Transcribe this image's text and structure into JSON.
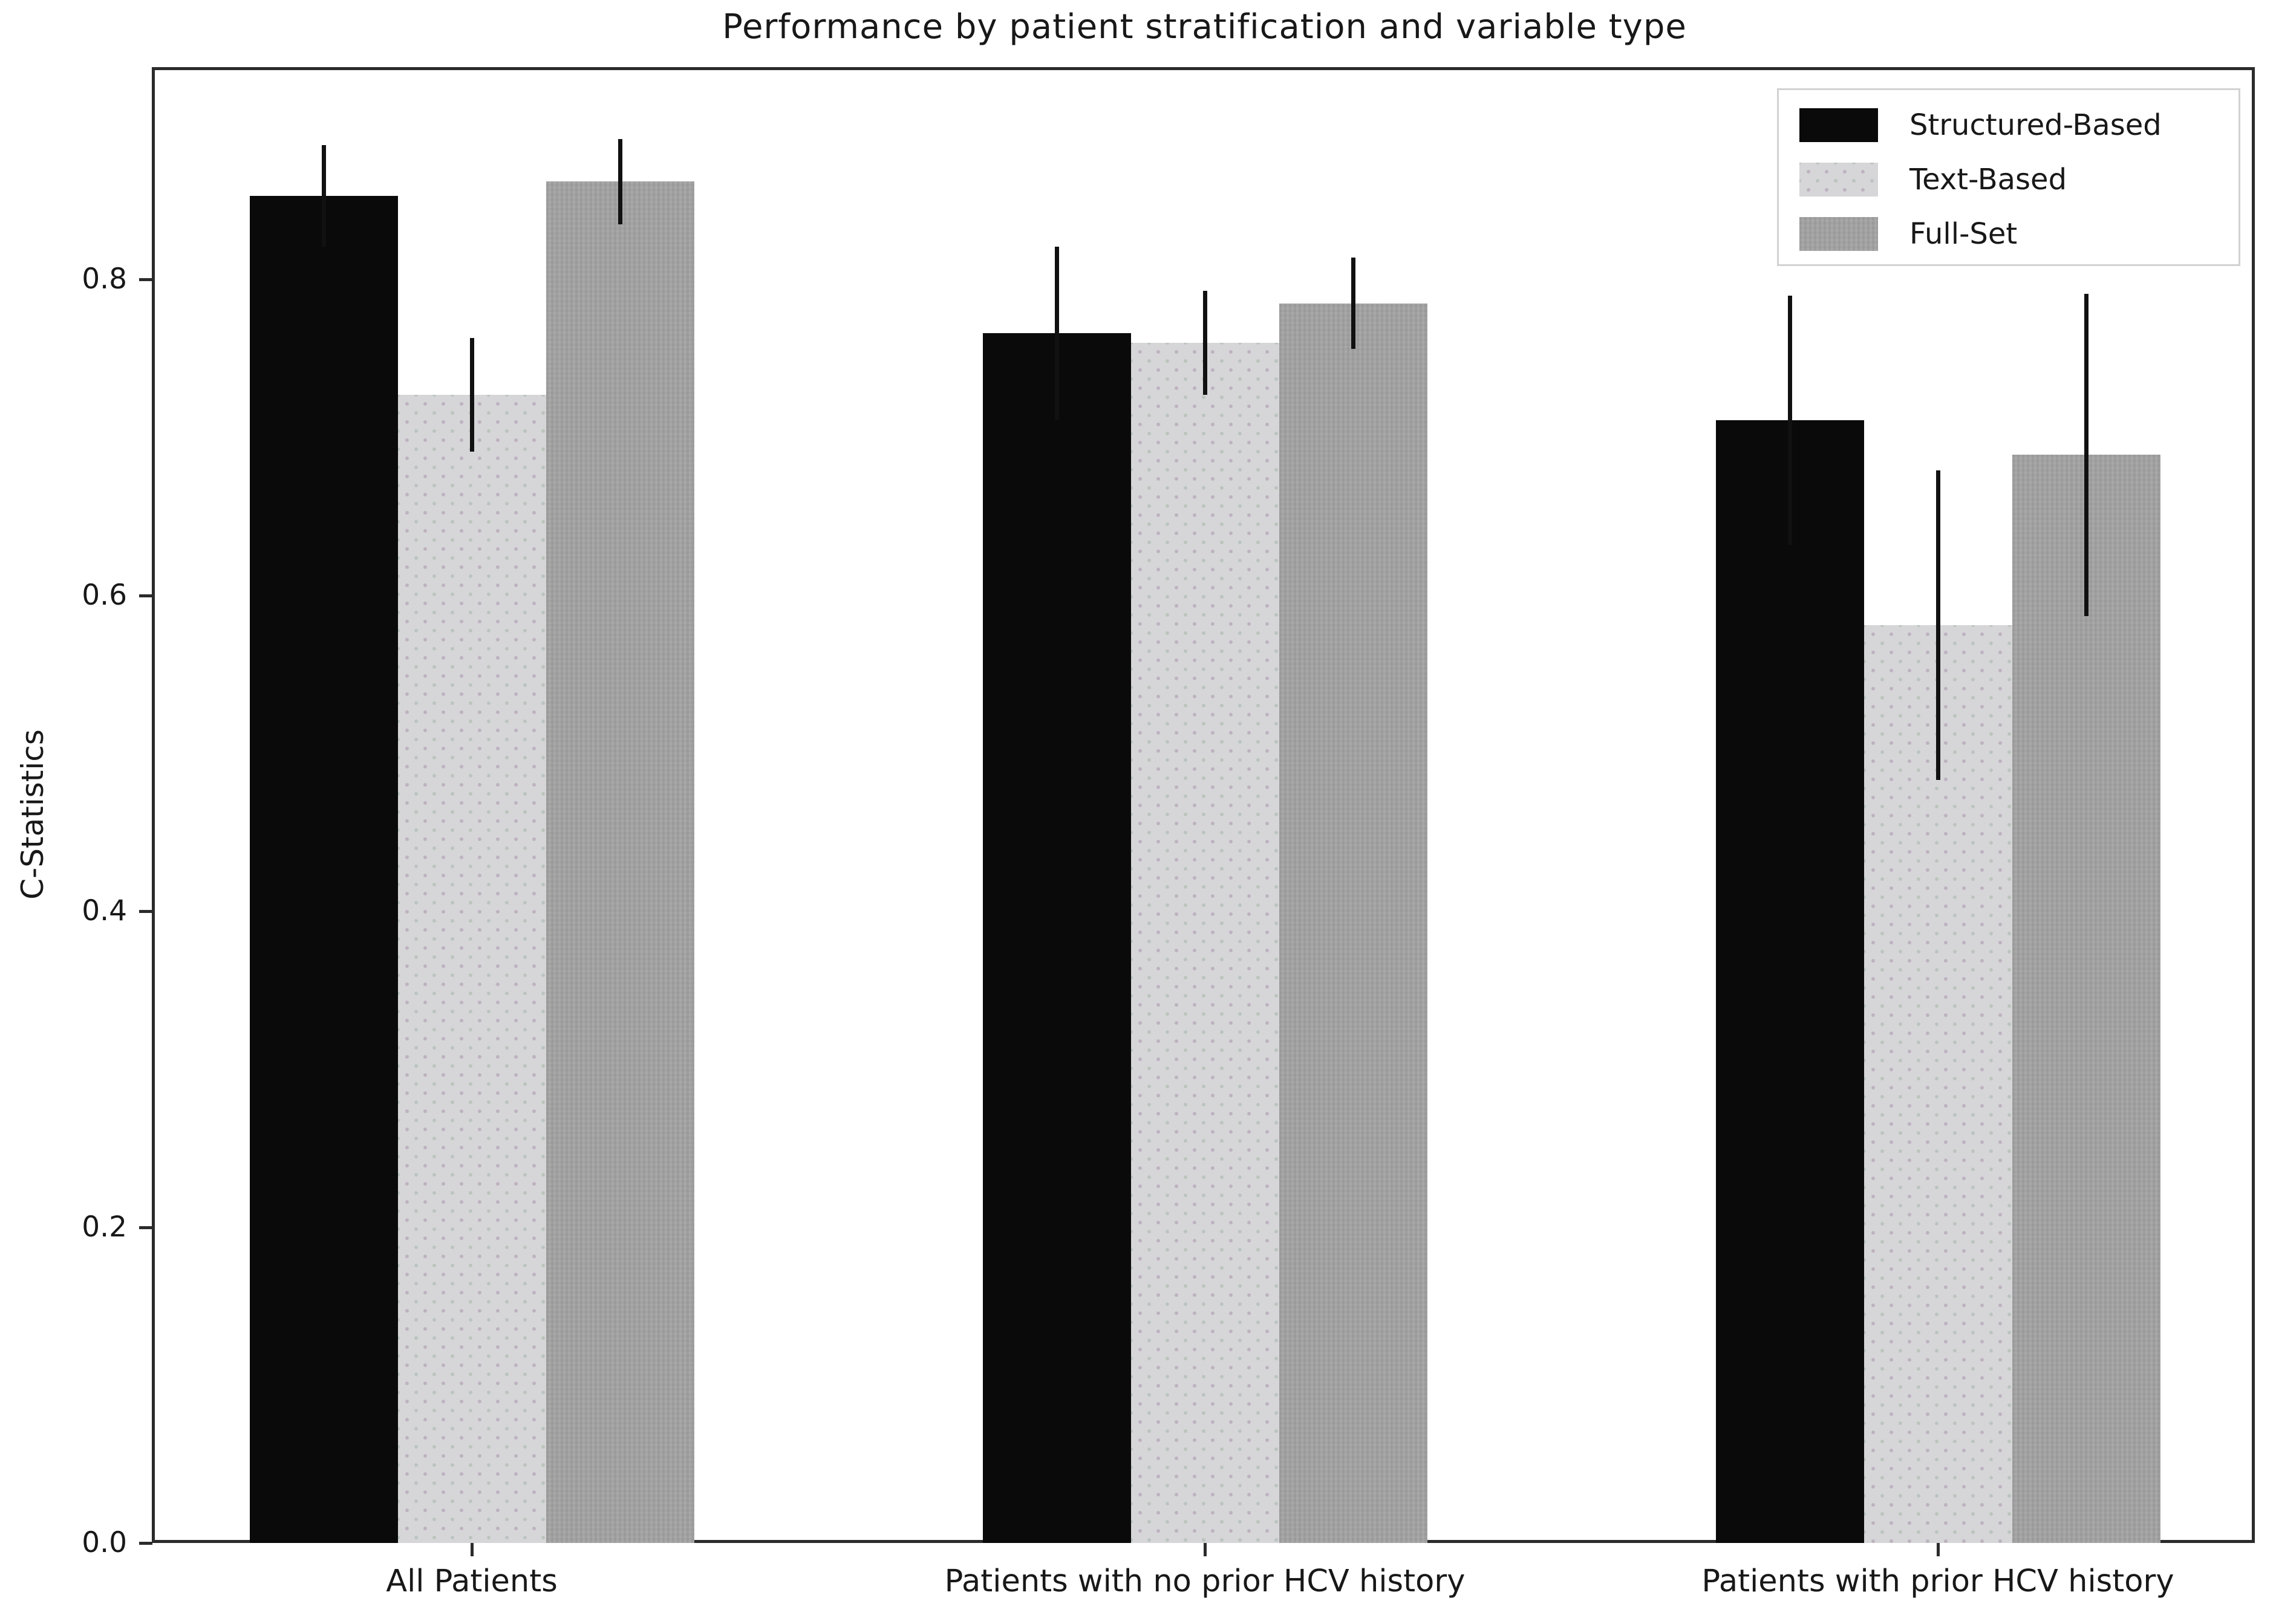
{
  "figure": {
    "background": "#ffffff",
    "spine_color": "#2b2b2b"
  },
  "chart_data": {
    "type": "bar",
    "title": "Performance by patient stratification and variable type",
    "xlabel": "",
    "ylabel": "C-Statistics",
    "categories": [
      "All Patients",
      "Patients with no prior HCV history",
      "Patients with prior HCV history"
    ],
    "series": [
      {
        "name": "Structured-Based",
        "color": "#0a0a0a",
        "pattern": "solid",
        "values": [
          0.853,
          0.766,
          0.711
        ],
        "errors": [
          0.032,
          0.055,
          0.079
        ]
      },
      {
        "name": "Text-Based",
        "color": "#d6d6d8",
        "pattern": "fine-dots",
        "values": [
          0.727,
          0.76,
          0.581
        ],
        "errors": [
          0.036,
          0.033,
          0.098
        ]
      },
      {
        "name": "Full-Set",
        "color": "#a3a3a3",
        "pattern": "fine-checker",
        "values": [
          0.862,
          0.785,
          0.689
        ],
        "errors": [
          0.027,
          0.029,
          0.102
        ]
      }
    ],
    "yticks": [
      0.0,
      0.2,
      0.4,
      0.6,
      0.8
    ],
    "ytick_labels": [
      "0.0",
      "0.2",
      "0.4",
      "0.6",
      "0.8"
    ],
    "ylim": [
      0,
      0.933
    ],
    "grid": false,
    "error_bar_color": "#111111",
    "legend": {
      "position": "upper right",
      "entries": [
        "Structured-Based",
        "Text-Based",
        "Full-Set"
      ]
    }
  }
}
